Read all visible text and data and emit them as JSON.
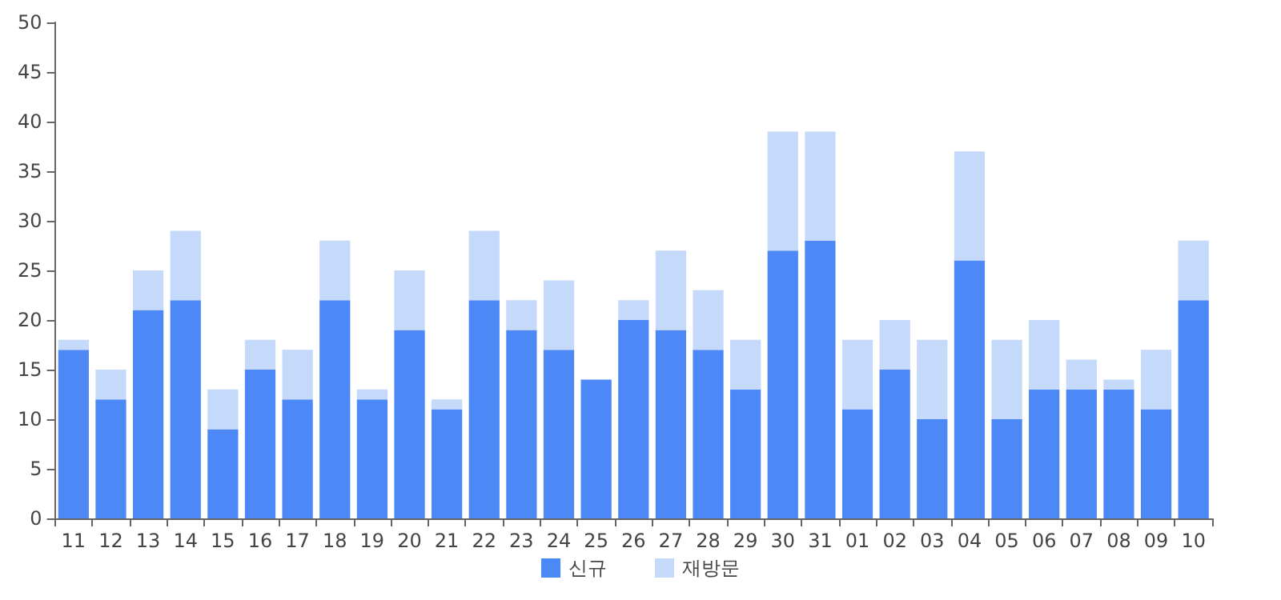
{
  "chart_data": {
    "type": "bar",
    "stacked": true,
    "categories": [
      "11",
      "12",
      "13",
      "14",
      "15",
      "16",
      "17",
      "18",
      "19",
      "20",
      "21",
      "22",
      "23",
      "24",
      "25",
      "26",
      "27",
      "28",
      "29",
      "30",
      "31",
      "01",
      "02",
      "03",
      "04",
      "05",
      "06",
      "07",
      "08",
      "09",
      "10"
    ],
    "series": [
      {
        "name": "신규",
        "color": "#4d88f7",
        "values": [
          17,
          12,
          21,
          22,
          9,
          15,
          12,
          22,
          12,
          19,
          11,
          22,
          19,
          17,
          14,
          20,
          19,
          17,
          13,
          27,
          28,
          11,
          15,
          10,
          26,
          10,
          13,
          13,
          13,
          11,
          22
        ]
      },
      {
        "name": "재방문",
        "color": "#c5d9fb",
        "values": [
          1,
          3,
          4,
          7,
          4,
          3,
          5,
          6,
          1,
          6,
          1,
          7,
          3,
          7,
          0,
          2,
          8,
          6,
          5,
          12,
          11,
          7,
          5,
          8,
          11,
          8,
          7,
          3,
          1,
          6,
          6
        ]
      }
    ],
    "ylim": [
      0,
      50
    ],
    "yticks": [
      0,
      5,
      10,
      15,
      20,
      25,
      30,
      35,
      40,
      45,
      50
    ],
    "grid": false,
    "legend": "bottom"
  }
}
